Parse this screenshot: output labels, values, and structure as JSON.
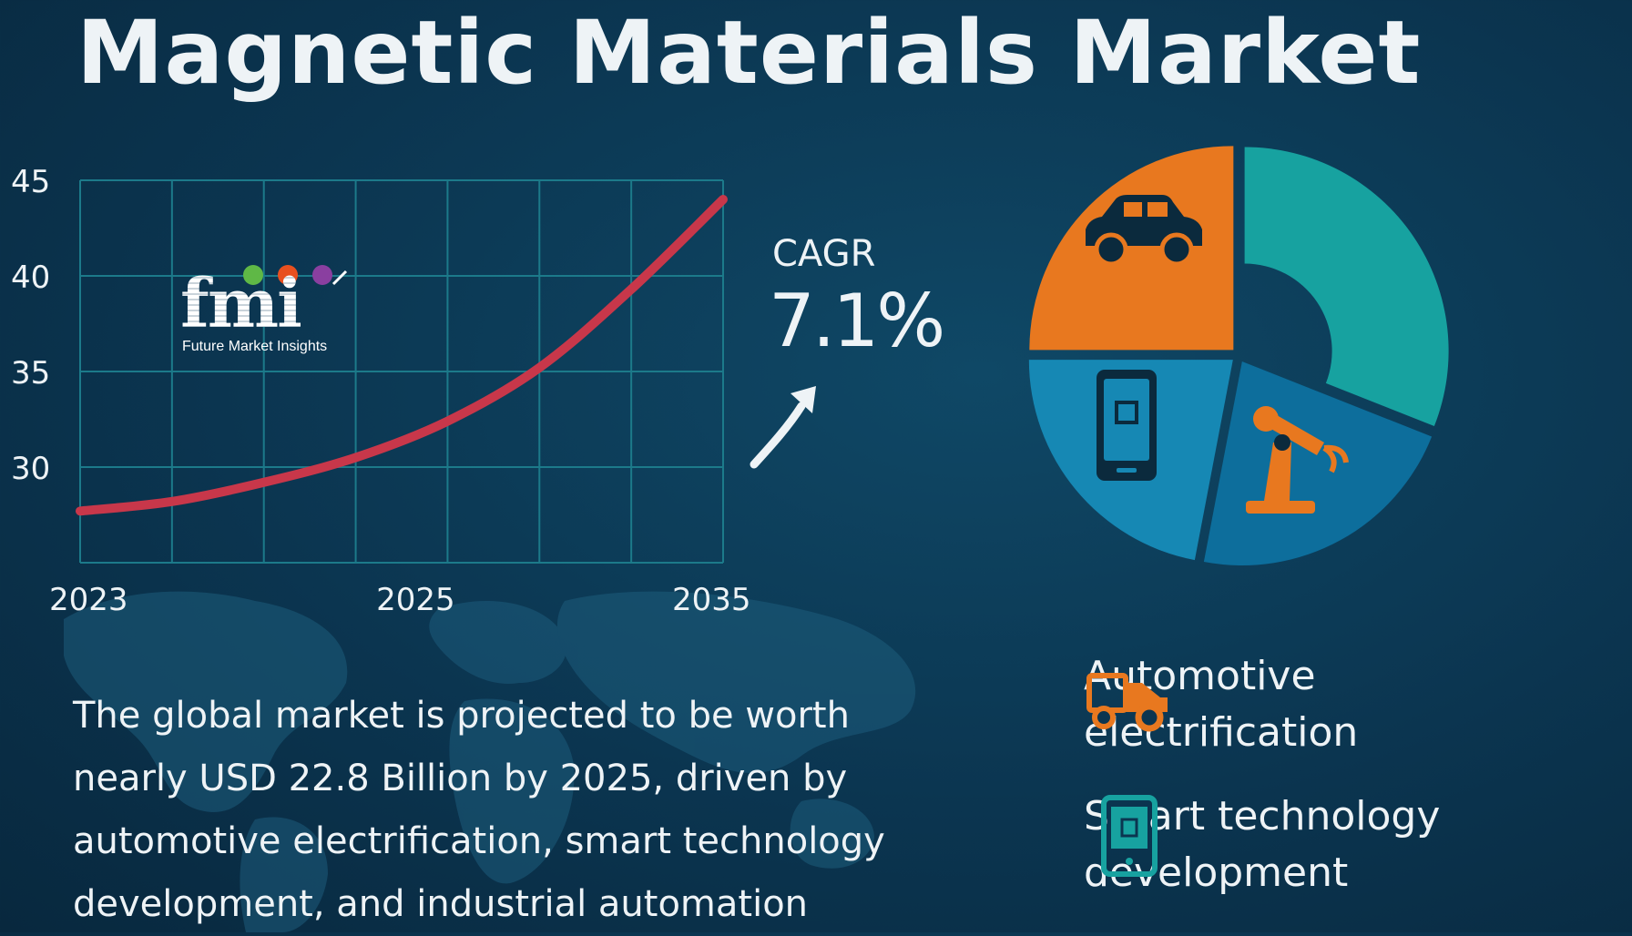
{
  "title": "Magnetic Materials Market",
  "cagr": {
    "label": "CAGR",
    "value": "7.1%"
  },
  "description": "The global market is projected to be worth nearly USD 22.8 Billion by 2025, driven by automotive electrification, smart technology development, and industrial automation",
  "logo": {
    "text": "fmi",
    "subtitle": "Future Market Insights"
  },
  "legend": [
    {
      "label": "Automotive electrification",
      "icon": "ev-truck-icon",
      "color": "#e8781f"
    },
    {
      "label": "Smart technology development",
      "icon": "smartphone-chip-icon",
      "color": "#17a2a0"
    }
  ],
  "colors": {
    "line": "#c8374a",
    "grid": "#1c7a8a",
    "orange": "#e8781f",
    "teal": "#17a2a0",
    "blue_light": "#1688b4",
    "blue_dark": "#0d6e9c"
  },
  "chart_data": [
    {
      "type": "line",
      "title": "",
      "xlabel": "",
      "ylabel": "",
      "x_tick_labels": [
        "2023",
        "2025",
        "2035"
      ],
      "y_ticks": [
        30,
        35,
        40,
        45
      ],
      "ylim": [
        25,
        45
      ],
      "grid": true,
      "series": [
        {
          "x": [
            0,
            1,
            2,
            3,
            4,
            5,
            6,
            7
          ],
          "y": [
            27.7,
            28.2,
            29.2,
            30.5,
            32.4,
            35.2,
            39.3,
            44.0
          ]
        }
      ]
    },
    {
      "type": "pie",
      "donut": true,
      "slices": [
        {
          "icon": "car-icon",
          "color": "#e8781f",
          "value": 25
        },
        {
          "icon": "teal-segment",
          "color": "#17a2a0",
          "value": 31
        },
        {
          "icon": "robot-arm-icon",
          "color": "#0d6e9c",
          "value": 22
        },
        {
          "icon": "smartphone-chip-icon",
          "color": "#1688b4",
          "value": 22
        }
      ]
    }
  ]
}
